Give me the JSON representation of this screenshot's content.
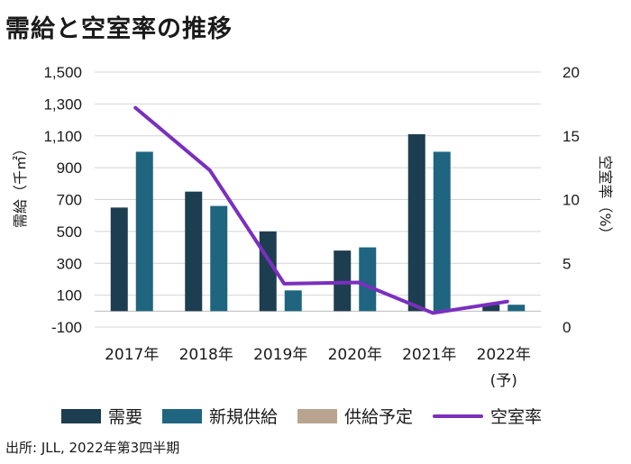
{
  "chart_data": {
    "type": "bar",
    "title": "需給と空室率の推移",
    "categories": [
      "2017年",
      "2018年",
      "2019年",
      "2020年",
      "2021年",
      "2022年"
    ],
    "category_sublabels": [
      "",
      "",
      "",
      "",
      "",
      "(予)"
    ],
    "y_left": {
      "label": "需給（千㎡）",
      "ylim": [
        -100,
        1500
      ],
      "ticks": [
        -100,
        100,
        300,
        500,
        700,
        900,
        1100,
        1300,
        1500
      ],
      "tick_labels": [
        "-100",
        "100",
        "300",
        "500",
        "700",
        "900",
        "1,100",
        "1,300",
        "1,500"
      ]
    },
    "y_right": {
      "label": "空室率（%）",
      "ylim": [
        0,
        20
      ],
      "ticks": [
        0,
        5,
        10,
        15,
        20
      ],
      "tick_labels": [
        "0",
        "5",
        "10",
        "15",
        "20"
      ]
    },
    "series": [
      {
        "name": "需要",
        "type": "bar",
        "axis": "left",
        "color": "#1d3e50",
        "values": [
          650,
          750,
          500,
          380,
          1110,
          40
        ]
      },
      {
        "name": "新規供給",
        "type": "bar",
        "axis": "left",
        "color": "#1f6580",
        "values": [
          1000,
          660,
          130,
          400,
          1000,
          40
        ]
      },
      {
        "name": "供給予定",
        "type": "bar",
        "axis": "left",
        "color": "#b8a48f",
        "values": [
          0,
          0,
          0,
          0,
          0,
          0
        ]
      },
      {
        "name": "空室率",
        "type": "line",
        "axis": "right",
        "color": "#7b2fbf",
        "values": [
          17.2,
          12.3,
          3.4,
          3.5,
          1.1,
          2.0
        ]
      }
    ],
    "grid": true,
    "legend_position": "bottom"
  },
  "source": "出所: JLL, 2022年第3四半期"
}
